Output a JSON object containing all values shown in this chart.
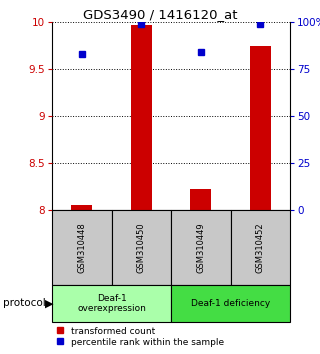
{
  "title": "GDS3490 / 1416120_at",
  "samples": [
    "GSM310448",
    "GSM310450",
    "GSM310449",
    "GSM310452"
  ],
  "transformed_counts": [
    8.05,
    9.97,
    8.22,
    9.75
  ],
  "percentile_ranks": [
    0.83,
    0.99,
    0.84,
    0.99
  ],
  "ylim": [
    8.0,
    10.0
  ],
  "yticks": [
    8.0,
    8.5,
    9.0,
    9.5,
    10.0
  ],
  "ytick_labels_left": [
    "8",
    "8.5",
    "9",
    "9.5",
    "10"
  ],
  "ytick_labels_right": [
    "0",
    "25",
    "50",
    "75",
    "100%"
  ],
  "left_axis_color": "#cc0000",
  "right_axis_color": "#0000cc",
  "bar_color": "#cc0000",
  "dot_color": "#0000cc",
  "bg_sample_labels": "#c8c8c8",
  "protocol_groups": [
    {
      "label": "Deaf-1\noverexpression",
      "color": "#aaffaa"
    },
    {
      "label": "Deaf-1 deficiency",
      "color": "#44dd44"
    }
  ],
  "protocol_label": "protocol",
  "legend_bar_label": "transformed count",
  "legend_dot_label": "percentile rank within the sample",
  "bar_width": 0.35
}
